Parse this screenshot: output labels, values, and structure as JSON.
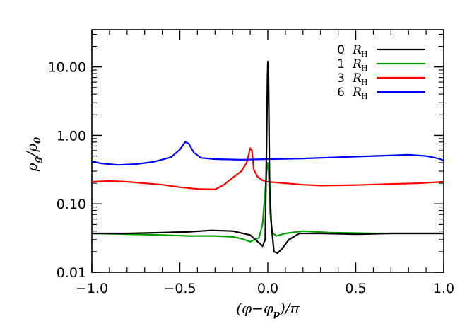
{
  "chart_data": {
    "type": "line",
    "xlabel": "(φ−φ_p)/π",
    "ylabel": "ρ_g/ρ_0",
    "xlim": [
      -1.0,
      1.0
    ],
    "ylim": [
      0.01,
      35
    ],
    "yscale": "log",
    "x_ticks": [
      -1.0,
      -0.5,
      0.0,
      0.5,
      1.0
    ],
    "x_tick_labels": [
      "−1.0",
      "−0.5",
      "0.0",
      "0.5",
      "1.0"
    ],
    "y_ticks": [
      0.01,
      0.1,
      1.0,
      10.0
    ],
    "y_tick_labels": [
      "0.01",
      "0.10",
      "1.00",
      "10.00"
    ],
    "legend_position": "top-right",
    "grid": false,
    "series": [
      {
        "name": "0 R_H",
        "label_num": "0",
        "color": "#000000",
        "points": [
          [
            -1.0,
            0.037
          ],
          [
            -0.8,
            0.037
          ],
          [
            -0.6,
            0.038
          ],
          [
            -0.45,
            0.039
          ],
          [
            -0.32,
            0.041
          ],
          [
            -0.2,
            0.04
          ],
          [
            -0.1,
            0.035
          ],
          [
            -0.05,
            0.027
          ],
          [
            -0.03,
            0.024
          ],
          [
            -0.015,
            0.03
          ],
          [
            -0.008,
            0.5
          ],
          [
            -0.002,
            7.0
          ],
          [
            0.0,
            12.0
          ],
          [
            0.004,
            7.0
          ],
          [
            0.01,
            0.2
          ],
          [
            0.02,
            0.05
          ],
          [
            0.035,
            0.02
          ],
          [
            0.055,
            0.019
          ],
          [
            0.08,
            0.022
          ],
          [
            0.12,
            0.03
          ],
          [
            0.18,
            0.037
          ],
          [
            0.3,
            0.037
          ],
          [
            0.5,
            0.036
          ],
          [
            0.7,
            0.037
          ],
          [
            1.0,
            0.037
          ]
        ]
      },
      {
        "name": "1 R_H",
        "label_num": "1",
        "color": "#00a000",
        "points": [
          [
            -1.0,
            0.037
          ],
          [
            -0.8,
            0.036
          ],
          [
            -0.6,
            0.035
          ],
          [
            -0.45,
            0.034
          ],
          [
            -0.3,
            0.034
          ],
          [
            -0.2,
            0.033
          ],
          [
            -0.15,
            0.031
          ],
          [
            -0.1,
            0.028
          ],
          [
            -0.05,
            0.032
          ],
          [
            -0.03,
            0.05
          ],
          [
            -0.015,
            0.15
          ],
          [
            -0.005,
            0.36
          ],
          [
            0.0,
            0.4
          ],
          [
            0.005,
            0.3
          ],
          [
            0.012,
            0.08
          ],
          [
            0.025,
            0.038
          ],
          [
            0.05,
            0.034
          ],
          [
            0.1,
            0.037
          ],
          [
            0.2,
            0.04
          ],
          [
            0.35,
            0.038
          ],
          [
            0.6,
            0.037
          ],
          [
            1.0,
            0.037
          ]
        ]
      },
      {
        "name": "3 R_H",
        "label_num": "3",
        "color": "#ff0000",
        "points": [
          [
            -1.0,
            0.21
          ],
          [
            -0.9,
            0.215
          ],
          [
            -0.8,
            0.21
          ],
          [
            -0.7,
            0.2
          ],
          [
            -0.6,
            0.19
          ],
          [
            -0.5,
            0.175
          ],
          [
            -0.4,
            0.165
          ],
          [
            -0.3,
            0.162
          ],
          [
            -0.25,
            0.19
          ],
          [
            -0.2,
            0.24
          ],
          [
            -0.15,
            0.3
          ],
          [
            -0.12,
            0.4
          ],
          [
            -0.1,
            0.65
          ],
          [
            -0.09,
            0.6
          ],
          [
            -0.08,
            0.32
          ],
          [
            -0.06,
            0.25
          ],
          [
            -0.03,
            0.22
          ],
          [
            0.0,
            0.21
          ],
          [
            0.1,
            0.2
          ],
          [
            0.2,
            0.19
          ],
          [
            0.3,
            0.185
          ],
          [
            0.5,
            0.188
          ],
          [
            0.7,
            0.195
          ],
          [
            0.85,
            0.2
          ],
          [
            1.0,
            0.21
          ]
        ]
      },
      {
        "name": "6 R_H",
        "label_num": "6",
        "color": "#0000ff",
        "points": [
          [
            -1.0,
            0.42
          ],
          [
            -0.95,
            0.39
          ],
          [
            -0.85,
            0.37
          ],
          [
            -0.75,
            0.38
          ],
          [
            -0.65,
            0.41
          ],
          [
            -0.55,
            0.48
          ],
          [
            -0.5,
            0.62
          ],
          [
            -0.47,
            0.8
          ],
          [
            -0.45,
            0.76
          ],
          [
            -0.42,
            0.56
          ],
          [
            -0.38,
            0.47
          ],
          [
            -0.3,
            0.45
          ],
          [
            -0.15,
            0.44
          ],
          [
            0.0,
            0.45
          ],
          [
            0.2,
            0.46
          ],
          [
            0.4,
            0.48
          ],
          [
            0.6,
            0.5
          ],
          [
            0.8,
            0.52
          ],
          [
            0.9,
            0.5
          ],
          [
            0.97,
            0.46
          ],
          [
            1.0,
            0.43
          ]
        ]
      }
    ]
  }
}
